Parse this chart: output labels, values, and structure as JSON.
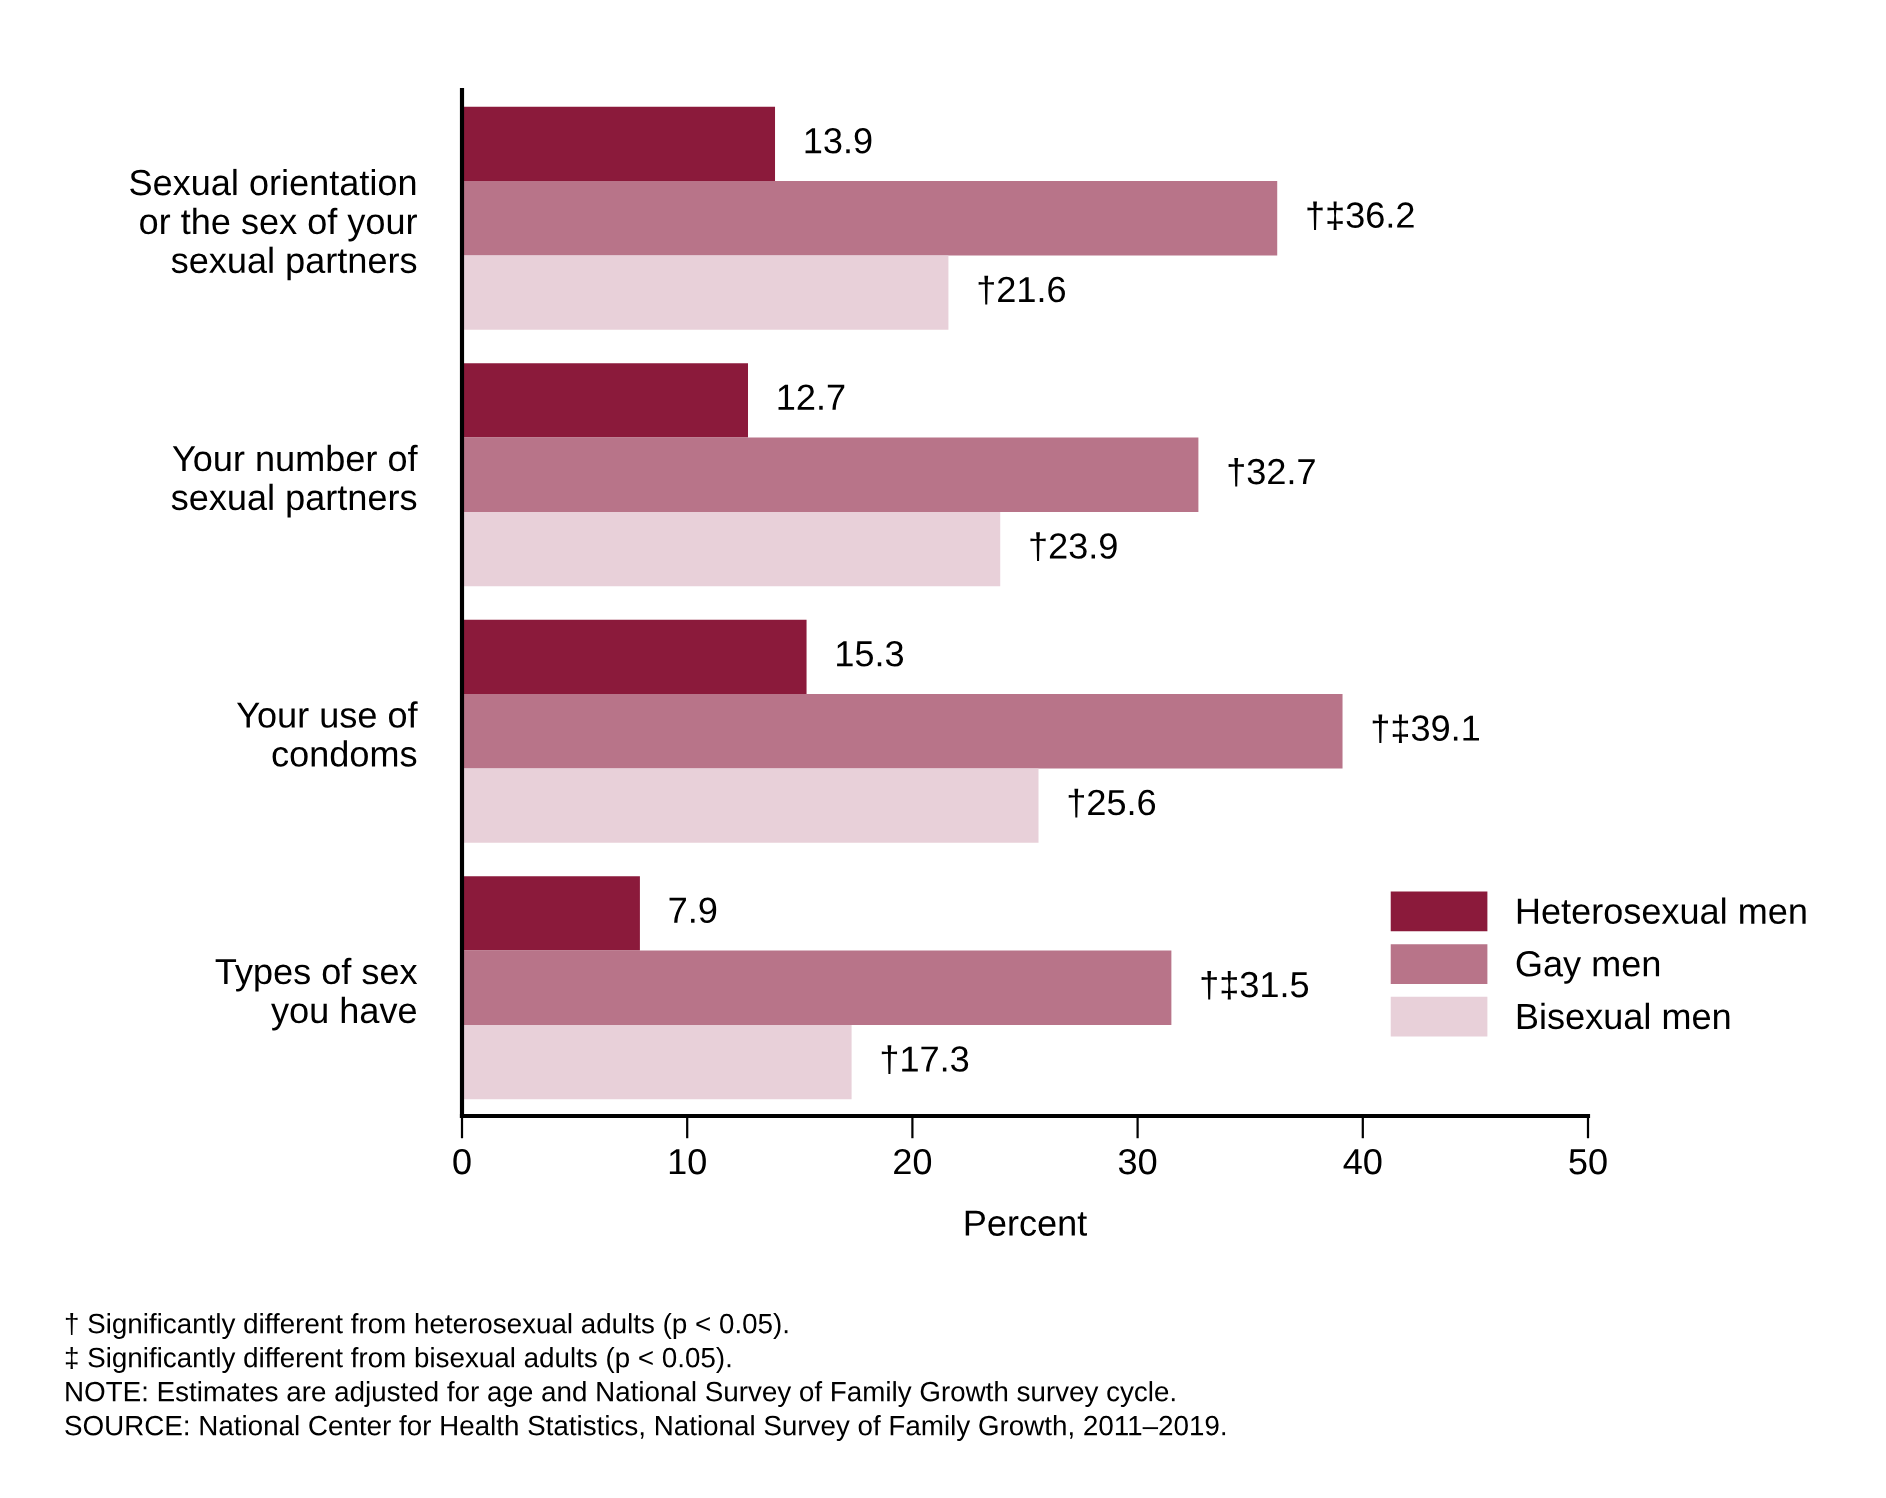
{
  "chart_data": {
    "type": "bar",
    "orientation": "horizontal",
    "xlabel": "Percent",
    "categories": [
      "Sexual orientation\nor the sex of your\nsexual partners",
      "Your number of\nsexual partners",
      "Your use of\ncondoms",
      "Types of sex\nyou have"
    ],
    "series": [
      {
        "name": "Heterosexual men",
        "color": "#8b1a3b",
        "values": [
          13.9,
          12.7,
          15.3,
          7.9
        ],
        "value_labels": [
          "13.9",
          "12.7",
          "15.3",
          "7.9"
        ]
      },
      {
        "name": "Gay men",
        "color": "#b87489",
        "values": [
          36.2,
          32.7,
          39.1,
          31.5
        ],
        "value_labels": [
          "†‡36.2",
          "†32.7",
          "†‡39.1",
          "†‡31.5"
        ]
      },
      {
        "name": "Bisexual men",
        "color": "#e8d0d9",
        "values": [
          21.6,
          23.9,
          25.6,
          17.3
        ],
        "value_labels": [
          "†21.6",
          "†23.9",
          "†25.6",
          "†17.3"
        ]
      }
    ],
    "xlim": [
      0,
      50
    ],
    "xticks": [
      0,
      10,
      20,
      30,
      40,
      50
    ],
    "grid": false,
    "legend": "bottom right",
    "annotations": [
      "† Significantly different from heterosexual adults (p < 0.05).",
      "‡ Significantly different from bisexual adults (p < 0.05).",
      "NOTE: Estimates are adjusted for age and National Survey of Family Growth survey cycle.",
      "SOURCE: National Center for Health Statistics, National Survey of Family Growth, 2011–2019."
    ]
  }
}
